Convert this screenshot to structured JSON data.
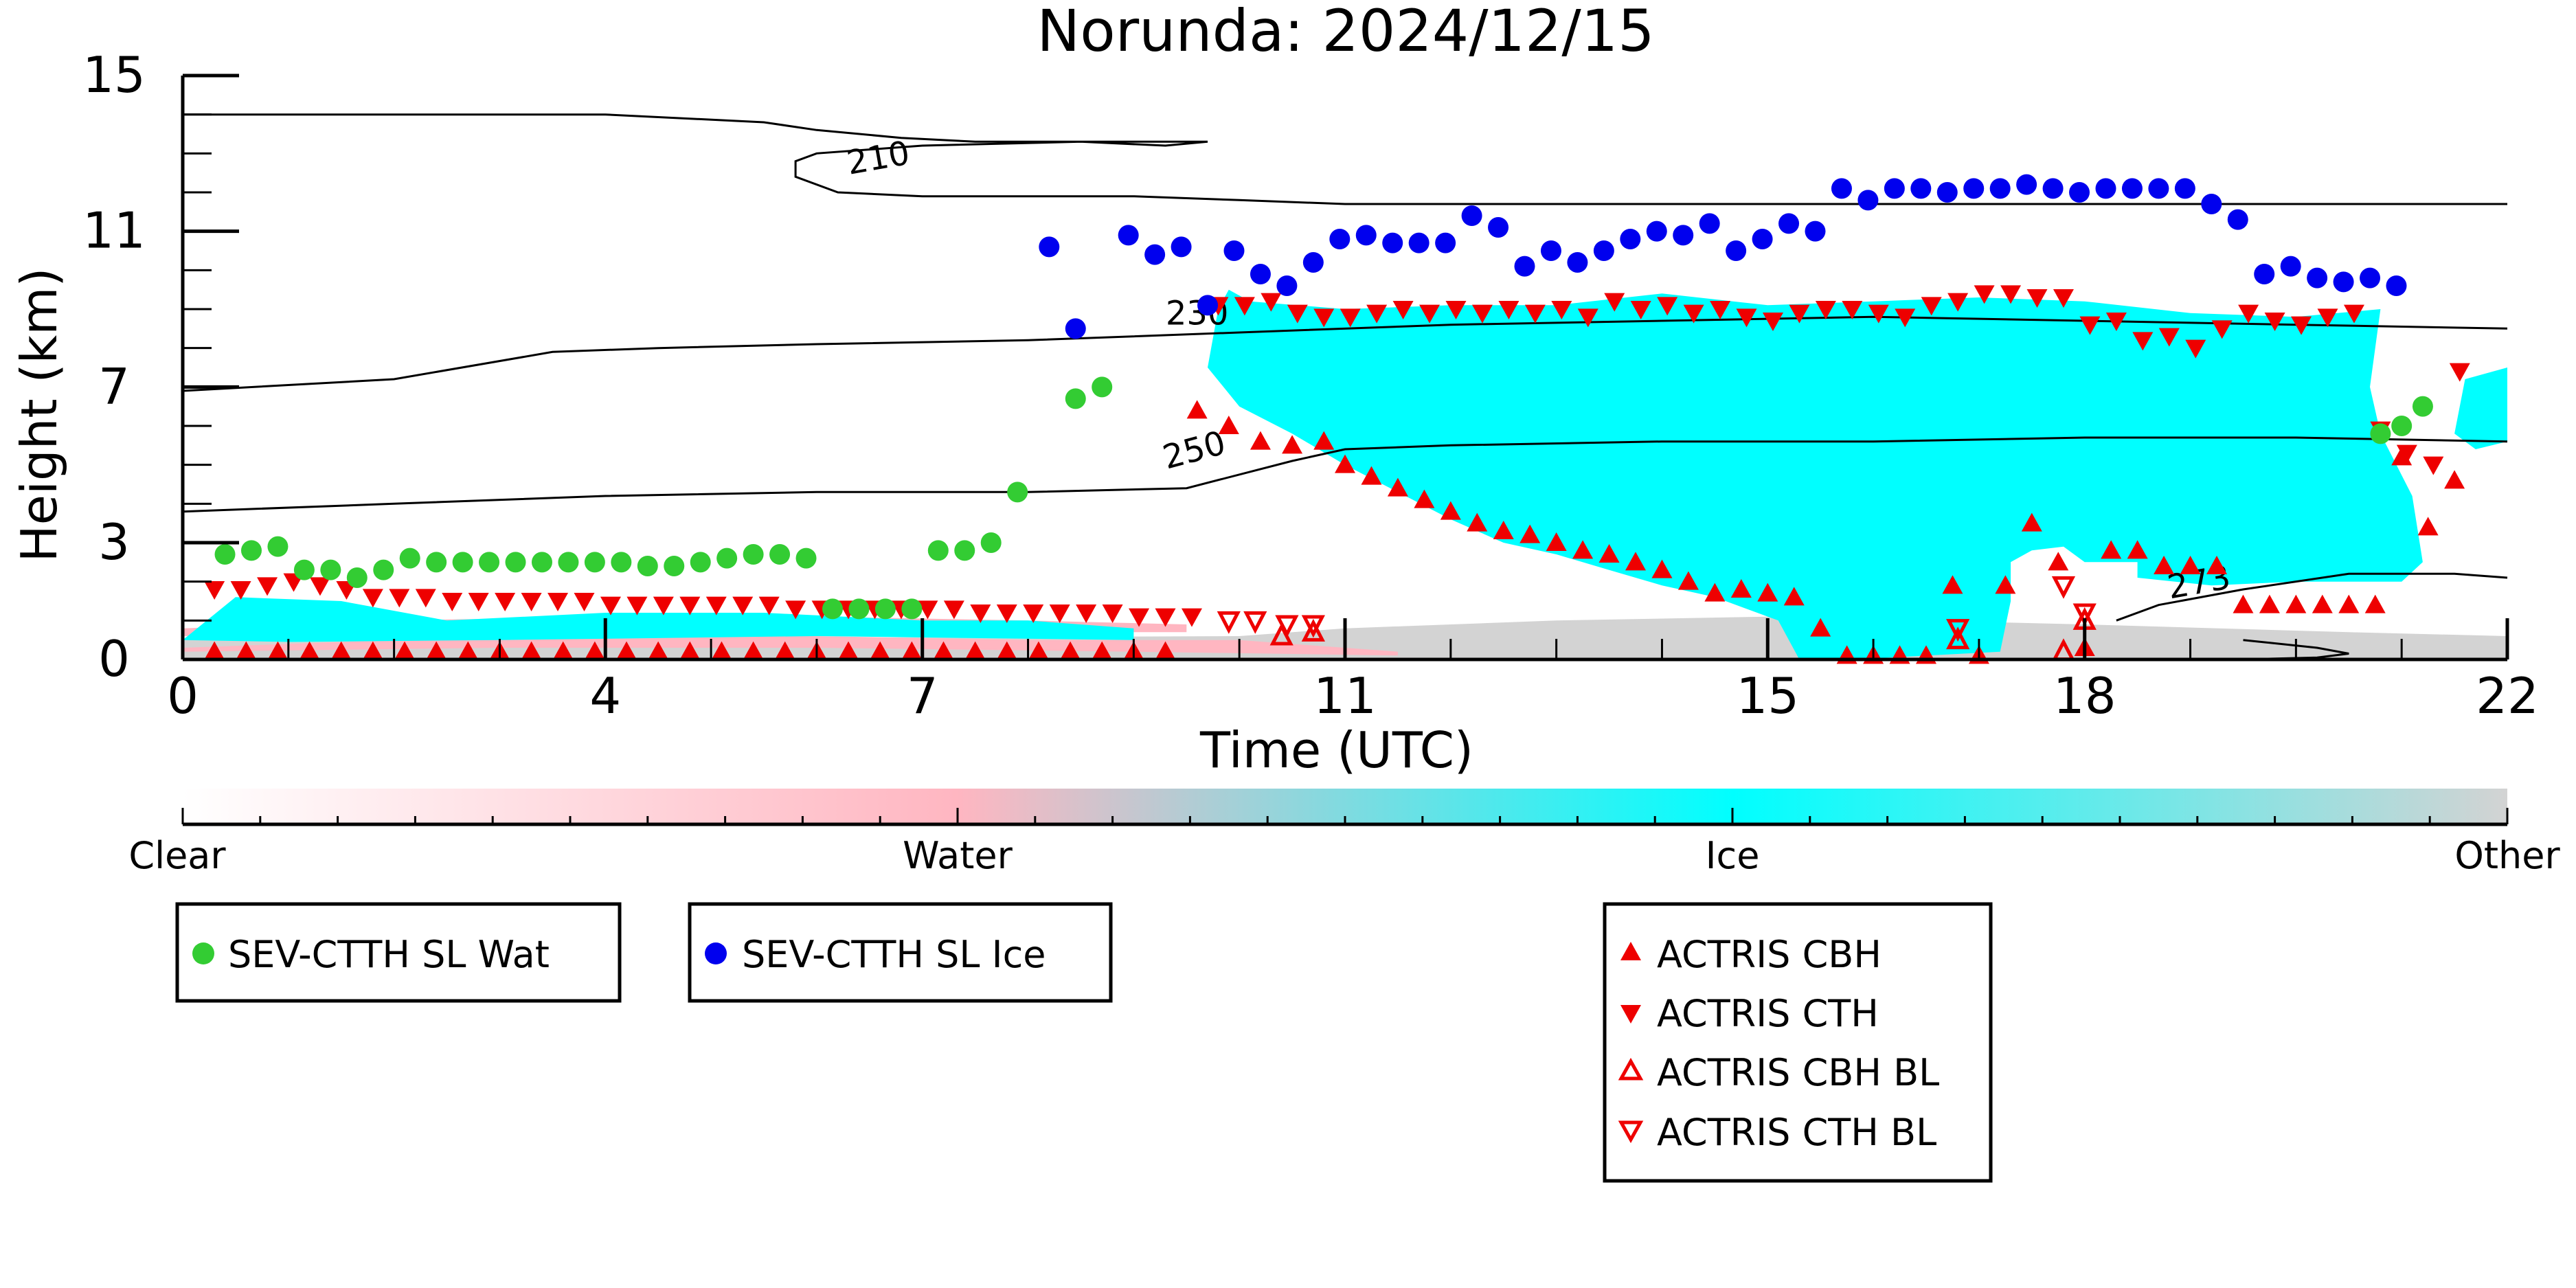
{
  "chart_data": {
    "type": "scatter",
    "title": "Norunda: 2024/12/15",
    "xlabel": "Time (UTC)",
    "ylabel": "Height (km)",
    "xlim": [
      0,
      22
    ],
    "ylim": [
      0,
      15
    ],
    "x_ticks": [
      "0",
      "4",
      "7",
      "11",
      "15",
      "18",
      "22"
    ],
    "y_ticks": [
      "0",
      "3",
      "7",
      "11",
      "15"
    ],
    "colorbar": {
      "labels": [
        "Clear",
        "Water",
        "Ice",
        "Other"
      ],
      "colors": [
        "#ffffff",
        "#ffb6c1",
        "#00ffff",
        "#d3d3d3"
      ]
    },
    "colors": {
      "water": "#ffb6c1",
      "ice": "#00ffff",
      "other": "#d3d3d3",
      "sev_wat": "#33cc33",
      "sev_ice": "#0000ee",
      "actris": "#ee0000"
    },
    "temperature_contours": [
      {
        "label": "210",
        "x": [
          0,
          2,
          4,
          5.5,
          6,
          6.8,
          7.5,
          8.5,
          9.5,
          9.7,
          9.3,
          8.5,
          7,
          6,
          5.8,
          5.8,
          6.2,
          7,
          8,
          9,
          10,
          11,
          14,
          16,
          18,
          20,
          22
        ],
        "y": [
          14.0,
          14.0,
          14.0,
          13.8,
          13.6,
          13.4,
          13.3,
          13.3,
          13.3,
          13.3,
          13.2,
          13.3,
          13.2,
          13.0,
          12.8,
          12.4,
          12.0,
          11.9,
          11.9,
          11.9,
          11.8,
          11.7,
          11.7,
          11.7,
          11.7,
          11.7,
          11.7
        ]
      },
      {
        "label": "230",
        "x": [
          0,
          2,
          3.5,
          4.5,
          6,
          8,
          10,
          12,
          14,
          16,
          18,
          20,
          22
        ],
        "y": [
          6.9,
          7.2,
          7.9,
          8.0,
          8.1,
          8.2,
          8.4,
          8.6,
          8.7,
          8.8,
          8.7,
          8.6,
          8.5
        ]
      },
      {
        "label": "250",
        "x": [
          0,
          2,
          4,
          6,
          8,
          9.5,
          10.5,
          11,
          12,
          14,
          16,
          18,
          20,
          22
        ],
        "y": [
          3.8,
          4.0,
          4.2,
          4.3,
          4.3,
          4.4,
          5.1,
          5.4,
          5.5,
          5.6,
          5.6,
          5.7,
          5.7,
          5.6
        ]
      },
      {
        "label": "273",
        "x": [
          18.3,
          18.7,
          19.5,
          20.5,
          21.5,
          22
        ],
        "y": [
          1.0,
          1.4,
          1.8,
          2.2,
          2.2,
          2.1
        ]
      },
      {
        "label": "",
        "x": [
          19.5,
          20.2,
          20.5,
          20.2,
          19.5
        ],
        "y": [
          0.5,
          0.3,
          0.15,
          0.05,
          0.0
        ]
      }
    ],
    "series": [
      {
        "name": "SEV-CTTH SL Wat",
        "marker": "circle",
        "x": [
          0.4,
          0.65,
          0.9,
          1.15,
          1.4,
          1.65,
          1.9,
          2.15,
          2.4,
          2.65,
          2.9,
          3.15,
          3.4,
          3.65,
          3.9,
          4.15,
          4.4,
          4.65,
          4.9,
          5.15,
          5.4,
          5.65,
          5.9,
          6.15,
          6.4,
          6.65,
          6.9,
          7.15,
          7.4,
          7.65,
          7.9,
          8.45,
          8.7,
          20.8,
          21.0,
          21.2
        ],
        "y": [
          2.7,
          2.8,
          2.9,
          2.3,
          2.3,
          2.1,
          2.3,
          2.6,
          2.5,
          2.5,
          2.5,
          2.5,
          2.5,
          2.5,
          2.5,
          2.5,
          2.4,
          2.4,
          2.5,
          2.6,
          2.7,
          2.7,
          2.6,
          1.3,
          1.3,
          1.3,
          1.3,
          2.8,
          2.8,
          3.0,
          4.3,
          6.7,
          7.0,
          5.8,
          6.0,
          6.5
        ]
      },
      {
        "name": "SEV-CTTH SL Ice",
        "marker": "circle",
        "x": [
          8.2,
          8.45,
          8.95,
          9.2,
          9.45,
          9.7,
          9.95,
          10.2,
          10.45,
          10.7,
          10.95,
          11.2,
          11.45,
          11.7,
          11.95,
          12.2,
          12.45,
          12.7,
          12.95,
          13.2,
          13.45,
          13.7,
          13.95,
          14.2,
          14.45,
          14.7,
          14.95,
          15.2,
          15.45,
          15.7,
          15.95,
          16.2,
          16.45,
          16.7,
          16.95,
          17.2,
          17.45,
          17.7,
          17.95,
          18.2,
          18.45,
          18.7,
          18.95,
          19.2,
          19.45,
          19.7,
          19.95,
          20.2,
          20.45,
          20.7,
          20.95
        ],
        "y": [
          10.6,
          8.5,
          10.9,
          10.4,
          10.6,
          9.1,
          10.5,
          9.9,
          9.6,
          10.2,
          10.8,
          10.9,
          10.7,
          10.7,
          10.7,
          11.4,
          11.1,
          10.1,
          10.5,
          10.2,
          10.5,
          10.8,
          11.0,
          10.9,
          11.2,
          10.5,
          10.8,
          11.2,
          11.0,
          12.1,
          11.8,
          12.1,
          12.1,
          12.0,
          12.1,
          12.1,
          12.2,
          12.1,
          12.0,
          12.1,
          12.1,
          12.1,
          12.1,
          11.7,
          11.3,
          9.9,
          10.1,
          9.8,
          9.7,
          9.8,
          9.6
        ]
      },
      {
        "name": "ACTRIS CBH",
        "marker": "triangle-up",
        "x": [
          0.3,
          0.6,
          0.9,
          1.2,
          1.5,
          1.8,
          2.1,
          2.4,
          2.7,
          3.0,
          3.3,
          3.6,
          3.9,
          4.2,
          4.5,
          4.8,
          5.1,
          5.4,
          5.7,
          6.0,
          6.3,
          6.6,
          6.9,
          7.2,
          7.5,
          7.8,
          8.1,
          8.4,
          8.7,
          9.0,
          9.3,
          9.6,
          9.9,
          10.2,
          10.5,
          10.8,
          11.0,
          11.25,
          11.5,
          11.75,
          12.0,
          12.25,
          12.5,
          12.75,
          13.0,
          13.25,
          13.5,
          13.75,
          14.0,
          14.25,
          14.5,
          14.75,
          15.0,
          15.25,
          15.5,
          15.75,
          16.0,
          16.25,
          16.5,
          16.75,
          17.0,
          17.25,
          17.5,
          17.75,
          18.0,
          18.25,
          18.5,
          18.75,
          19.0,
          19.25,
          19.5,
          19.75,
          20.0,
          20.25,
          20.5,
          20.75,
          21.0,
          21.25,
          21.5
        ],
        "y": [
          0.2,
          0.2,
          0.2,
          0.2,
          0.2,
          0.2,
          0.2,
          0.2,
          0.2,
          0.2,
          0.2,
          0.2,
          0.2,
          0.2,
          0.2,
          0.2,
          0.2,
          0.2,
          0.2,
          0.2,
          0.2,
          0.2,
          0.2,
          0.2,
          0.2,
          0.2,
          0.2,
          0.2,
          0.2,
          0.2,
          0.2,
          6.4,
          6.0,
          5.6,
          5.5,
          5.6,
          5.0,
          4.7,
          4.4,
          4.1,
          3.8,
          3.5,
          3.3,
          3.2,
          3.0,
          2.8,
          2.7,
          2.5,
          2.3,
          2.0,
          1.7,
          1.8,
          1.7,
          1.6,
          0.8,
          0.1,
          0.1,
          0.1,
          0.1,
          1.9,
          0.1,
          1.9,
          3.5,
          2.5,
          0.3,
          2.8,
          2.8,
          2.4,
          2.4,
          2.4,
          1.4,
          1.4,
          1.4,
          1.4,
          1.4,
          1.4,
          5.2,
          3.4,
          4.6
        ]
      },
      {
        "name": "ACTRIS CTH",
        "marker": "triangle-down",
        "x": [
          0.3,
          0.55,
          0.8,
          1.05,
          1.3,
          1.55,
          1.8,
          2.05,
          2.3,
          2.55,
          2.8,
          3.05,
          3.3,
          3.55,
          3.8,
          4.05,
          4.3,
          4.55,
          4.8,
          5.05,
          5.3,
          5.55,
          5.8,
          6.05,
          6.3,
          6.55,
          6.8,
          7.05,
          7.3,
          7.55,
          7.8,
          8.05,
          8.3,
          8.55,
          8.8,
          9.05,
          9.3,
          9.55,
          9.8,
          10.05,
          10.3,
          10.55,
          10.8,
          11.05,
          11.3,
          11.55,
          11.8,
          12.05,
          12.3,
          12.55,
          12.8,
          13.05,
          13.3,
          13.55,
          13.8,
          14.05,
          14.3,
          14.55,
          14.8,
          15.05,
          15.3,
          15.55,
          15.8,
          16.05,
          16.3,
          16.55,
          16.8,
          17.05,
          17.3,
          17.55,
          17.8,
          18.05,
          18.3,
          18.55,
          18.8,
          19.05,
          19.3,
          19.55,
          19.8,
          20.05,
          20.3,
          20.55,
          20.8,
          21.05,
          21.3,
          21.55
        ],
        "y": [
          1.8,
          1.8,
          1.9,
          2.0,
          1.9,
          1.8,
          1.6,
          1.6,
          1.6,
          1.5,
          1.5,
          1.5,
          1.5,
          1.5,
          1.5,
          1.4,
          1.4,
          1.4,
          1.4,
          1.4,
          1.4,
          1.4,
          1.3,
          1.3,
          1.3,
          1.3,
          1.3,
          1.3,
          1.3,
          1.2,
          1.2,
          1.2,
          1.2,
          1.2,
          1.2,
          1.1,
          1.1,
          1.1,
          9.1,
          9.1,
          9.2,
          8.9,
          8.8,
          8.8,
          8.9,
          9.0,
          8.9,
          9.0,
          8.9,
          9.0,
          8.9,
          9.0,
          8.8,
          9.2,
          9.0,
          9.1,
          8.9,
          9.0,
          8.8,
          8.7,
          8.9,
          9.0,
          9.0,
          8.9,
          8.8,
          9.1,
          9.2,
          9.4,
          9.4,
          9.3,
          9.3,
          8.6,
          8.7,
          8.2,
          8.3,
          8.0,
          8.5,
          8.9,
          8.7,
          8.6,
          8.8,
          8.9,
          5.9,
          5.3,
          5.0,
          7.4
        ]
      },
      {
        "name": "ACTRIS CBH BL",
        "marker": "triangle-up-open",
        "x": [
          10.4,
          10.7,
          16.8,
          17.8,
          18.0
        ],
        "y": [
          0.6,
          0.7,
          0.5,
          0.2,
          1.0
        ]
      },
      {
        "name": "ACTRIS CTH BL",
        "marker": "triangle-down-open",
        "x": [
          9.9,
          10.15,
          10.45,
          10.7,
          16.8,
          17.8,
          18.0
        ],
        "y": [
          1.0,
          1.0,
          0.9,
          0.9,
          0.8,
          1.9,
          1.2
        ]
      }
    ]
  }
}
